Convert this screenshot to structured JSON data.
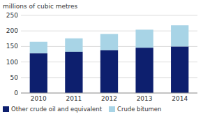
{
  "chart_data": {
    "type": "bar",
    "stacked": true,
    "ylabel": "millions of cubic metres",
    "categories": [
      "2010",
      "2011",
      "2012",
      "2013",
      "2014"
    ],
    "series": [
      {
        "name": "Other crude oil and equivalent",
        "color": "#0d1f6e",
        "values": [
          128,
          133,
          138,
          146,
          150
        ]
      },
      {
        "name": "Crude bitumen",
        "color": "#a8d4e6",
        "values": [
          37,
          43,
          52,
          58,
          68
        ]
      }
    ],
    "ylim": [
      0,
      250
    ],
    "yticks": [
      0,
      50,
      100,
      150,
      200,
      250
    ],
    "grid": true,
    "legend": "bottom"
  }
}
